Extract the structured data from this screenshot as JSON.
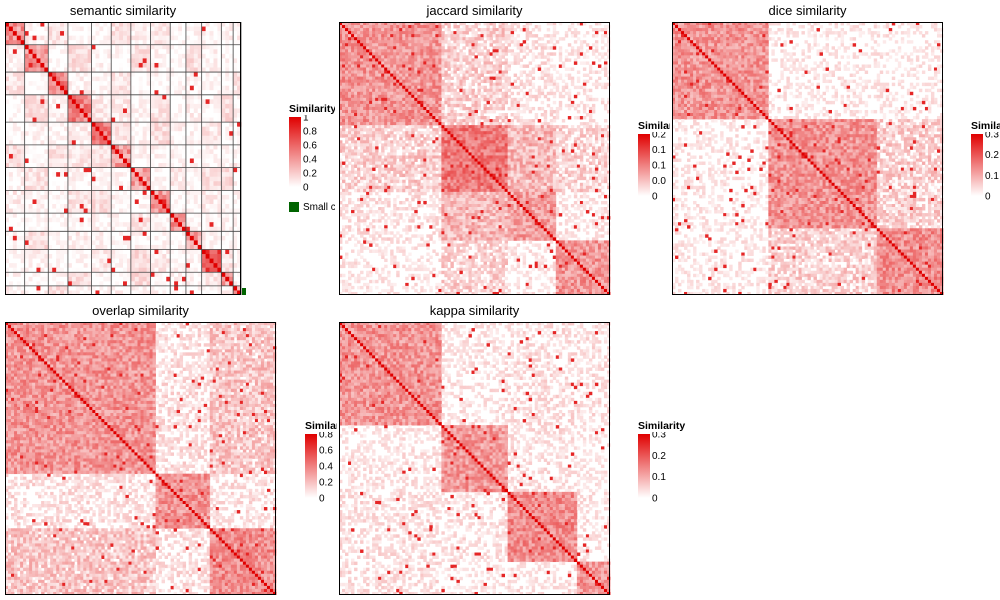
{
  "colors": {
    "high": "#e00000",
    "low": "#ffffff",
    "small_group": "#006400"
  },
  "chart_data": [
    {
      "type": "heatmap",
      "title": "semantic similarity",
      "legend": {
        "title": "Similarity",
        "ticks": [
          "1",
          "0.8",
          "0.6",
          "0.4",
          "0.2",
          "0"
        ],
        "max": 1
      },
      "extra_legend": {
        "label": "Small c",
        "color": "#006400"
      },
      "grid": true,
      "clusters": [
        0.08,
        0.18,
        0.27,
        0.37,
        0.45,
        0.54,
        0.62,
        0.7,
        0.77,
        0.84,
        0.91,
        0.96,
        1.0
      ]
    },
    {
      "type": "heatmap",
      "title": "jaccard similarity",
      "legend": {
        "title": "Similarity",
        "ticks": [
          "0.2",
          "0.1",
          "0.1",
          "0.0",
          "0"
        ],
        "max": 0.25
      },
      "grid": false,
      "clusters": [
        0.38,
        0.62,
        0.8,
        1.0
      ]
    },
    {
      "type": "heatmap",
      "title": "dice similarity",
      "legend": {
        "title": "Similarity",
        "ticks": [
          "0.3",
          "0.2",
          "0.1",
          "0"
        ],
        "max": 0.35
      },
      "grid": false,
      "clusters": [
        0.36,
        0.75,
        1.0
      ]
    },
    {
      "type": "heatmap",
      "title": "overlap similarity",
      "legend": {
        "title": "Similarity",
        "ticks": [
          "0.8",
          "0.6",
          "0.4",
          "0.2",
          "0"
        ],
        "max": 0.85
      },
      "grid": false,
      "clusters": [
        0.55,
        0.75,
        1.0
      ]
    },
    {
      "type": "heatmap",
      "title": "kappa similarity",
      "legend": {
        "title": "Similarity",
        "ticks": [
          "0.3",
          "0.2",
          "0.1",
          "0"
        ],
        "max": 0.3
      },
      "grid": false,
      "clusters": [
        0.38,
        0.62,
        0.88,
        1.0
      ]
    }
  ]
}
